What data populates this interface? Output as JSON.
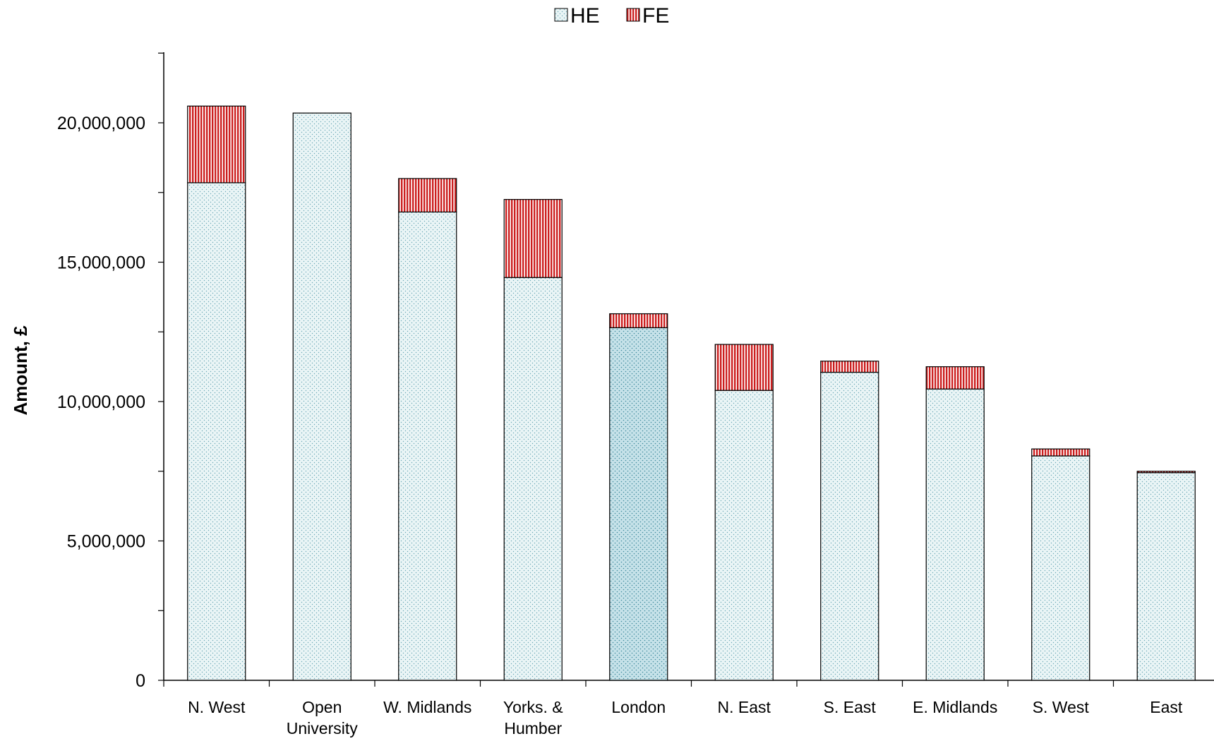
{
  "chart_data": {
    "type": "bar",
    "stacked": true,
    "title": "",
    "xlabel": "",
    "ylabel": "Amount, £",
    "ylim": [
      0,
      22500000
    ],
    "yticks": [
      0,
      5000000,
      10000000,
      15000000,
      20000000
    ],
    "ytick_labels": [
      "0",
      "5,000,000",
      "10,000,000",
      "15,000,000",
      "20,000,000"
    ],
    "grid": false,
    "legend_position": "top-center",
    "categories": [
      [
        "N. West"
      ],
      [
        "Open",
        "University"
      ],
      [
        "W. Midlands"
      ],
      [
        "Yorks. &",
        "Humber"
      ],
      [
        "London"
      ],
      [
        "N. East"
      ],
      [
        "S. East"
      ],
      [
        "E. Midlands"
      ],
      [
        "S. West"
      ],
      [
        "East"
      ]
    ],
    "series": [
      {
        "name": "HE",
        "color": "#e3f1f3",
        "values": [
          17850000,
          20350000,
          16800000,
          14450000,
          12650000,
          10400000,
          11050000,
          10450000,
          8050000,
          7450000
        ]
      },
      {
        "name": "FE",
        "color": "#cc2222",
        "values": [
          2750000,
          0,
          1200000,
          2800000,
          500000,
          1650000,
          400000,
          800000,
          250000,
          50000
        ]
      }
    ],
    "highlight_category_index": 4,
    "highlight_color": "#c8e3ea"
  }
}
